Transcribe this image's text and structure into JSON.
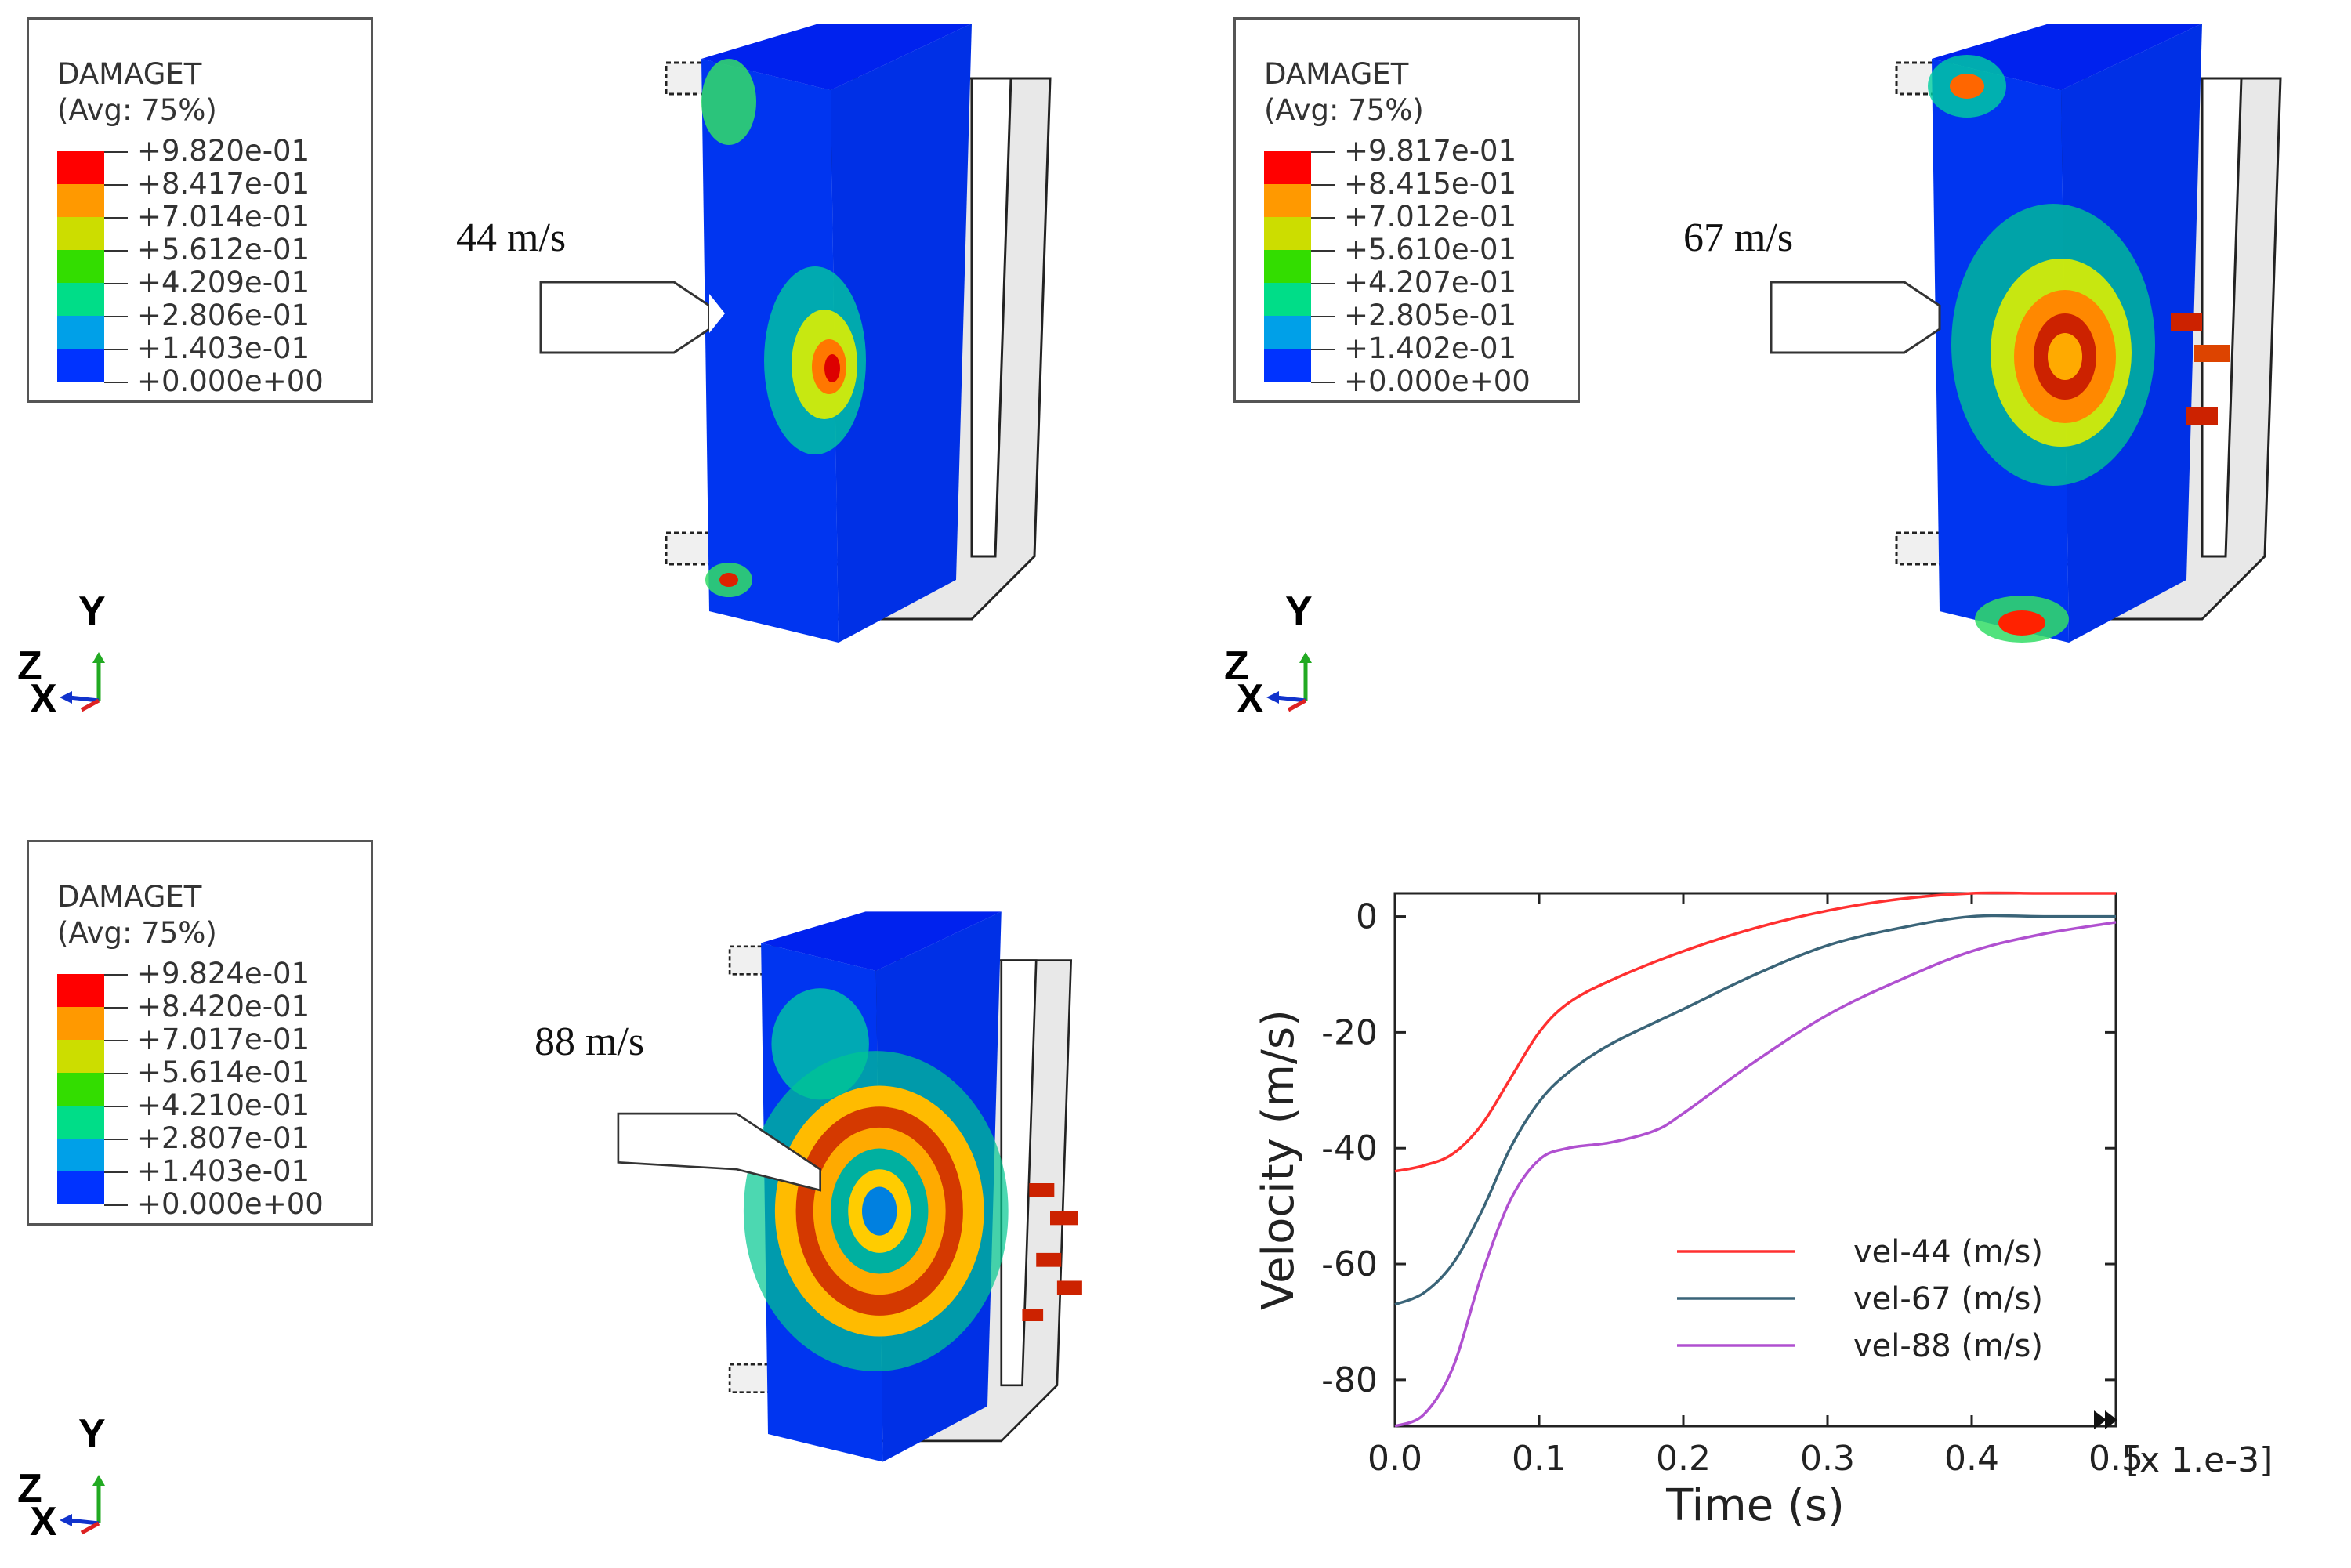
{
  "panels": [
    {
      "speed_label": "44 m/s",
      "legend": {
        "title": "DAMAGET",
        "subtitle": "(Avg: 75%)",
        "values": [
          "+9.820e-01",
          "+8.417e-01",
          "+7.014e-01",
          "+5.612e-01",
          "+4.209e-01",
          "+2.806e-01",
          "+1.403e-01",
          "+0.000e+00"
        ]
      }
    },
    {
      "speed_label": "67 m/s",
      "legend": {
        "title": "DAMAGET",
        "subtitle": "(Avg: 75%)",
        "values": [
          "+9.817e-01",
          "+8.415e-01",
          "+7.012e-01",
          "+5.610e-01",
          "+4.207e-01",
          "+2.805e-01",
          "+1.402e-01",
          "+0.000e+00"
        ]
      }
    },
    {
      "speed_label": "88 m/s",
      "legend": {
        "title": "DAMAGET",
        "subtitle": "(Avg: 75%)",
        "values": [
          "+9.824e-01",
          "+8.420e-01",
          "+7.017e-01",
          "+5.614e-01",
          "+4.210e-01",
          "+2.807e-01",
          "+1.403e-01",
          "+0.000e+00"
        ]
      }
    }
  ],
  "legend_colors": [
    "#ff0000",
    "#ff9900",
    "#ccdd00",
    "#33dd00",
    "#00dd88",
    "#00a0e8",
    "#0033ff"
  ],
  "triad": {
    "y": "Y",
    "z": "Z",
    "x": "X"
  },
  "chart_data": {
    "type": "line",
    "xlabel": "Time (s)",
    "ylabel": "Velocity (m/s)",
    "x_multiplier_label": "[x 1.e-3]",
    "xlim": [
      0,
      0.5
    ],
    "ylim": [
      -88,
      4
    ],
    "xticks": [
      "0.0",
      "0.1",
      "0.2",
      "0.3",
      "0.4",
      "0.5"
    ],
    "yticks": [
      "0",
      "-20",
      "-40",
      "-60",
      "-80"
    ],
    "legend_position": "lower-right",
    "series": [
      {
        "name": "vel-44 (m/s)",
        "color": "#ff3030",
        "x": [
          0,
          0.02,
          0.04,
          0.06,
          0.08,
          0.1,
          0.12,
          0.15,
          0.2,
          0.25,
          0.3,
          0.35,
          0.4,
          0.45,
          0.5
        ],
        "y": [
          -44,
          -43,
          -41,
          -36,
          -28,
          -20,
          -15,
          -11,
          -6,
          -2,
          1,
          3,
          4,
          4,
          4
        ]
      },
      {
        "name": "vel-67 (m/s)",
        "color": "#3a6478",
        "x": [
          0,
          0.02,
          0.04,
          0.06,
          0.08,
          0.1,
          0.12,
          0.15,
          0.2,
          0.25,
          0.3,
          0.35,
          0.4,
          0.45,
          0.5
        ],
        "y": [
          -67,
          -65,
          -60,
          -51,
          -40,
          -32,
          -27,
          -22,
          -16,
          -10,
          -5,
          -2,
          0,
          0,
          0
        ]
      },
      {
        "name": "vel-88 (m/s)",
        "color": "#b050d0",
        "x": [
          0,
          0.02,
          0.04,
          0.06,
          0.08,
          0.1,
          0.12,
          0.15,
          0.18,
          0.2,
          0.25,
          0.3,
          0.35,
          0.4,
          0.45,
          0.5
        ],
        "y": [
          -88,
          -86,
          -78,
          -62,
          -49,
          -42,
          -40,
          -39,
          -37,
          -34,
          -25,
          -17,
          -11,
          -6,
          -3,
          -1
        ]
      }
    ]
  }
}
